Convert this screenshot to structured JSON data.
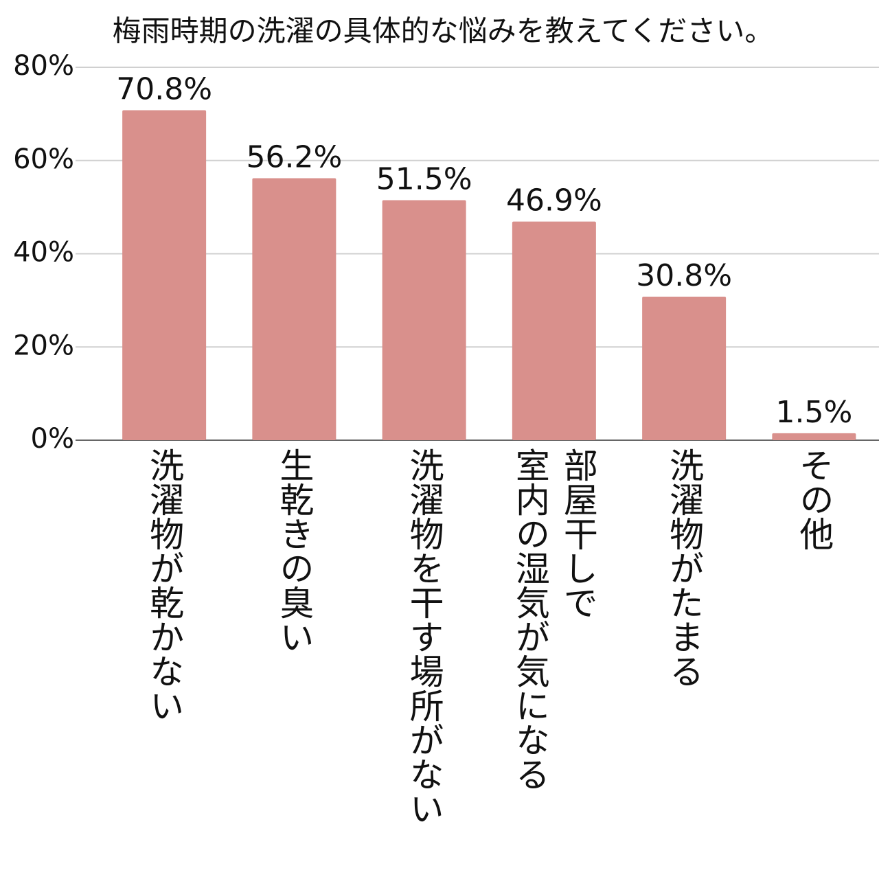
{
  "chart_data": {
    "type": "bar",
    "title": "梅雨時期の洗濯の具体的な悩みを教えてください。",
    "categories": [
      "洗濯物が乾かない",
      "生乾きの臭い",
      "洗濯物を干す場所がない",
      "部屋干しで\n室内の湿気が気になる",
      "洗濯物がたまる",
      "その他"
    ],
    "values": [
      70.8,
      56.2,
      51.5,
      46.9,
      30.8,
      1.5
    ],
    "value_labels": [
      "70.8%",
      "56.2%",
      "51.5%",
      "46.9%",
      "30.8%",
      "1.5%"
    ],
    "color": "#d9908c",
    "ylim": [
      0,
      80
    ],
    "yticks": [
      {
        "value": 0,
        "label": "0%"
      },
      {
        "value": 20,
        "label": "20%"
      },
      {
        "value": 40,
        "label": "40%"
      },
      {
        "value": 60,
        "label": "60%"
      },
      {
        "value": 80,
        "label": "80%"
      }
    ],
    "grid": true
  }
}
